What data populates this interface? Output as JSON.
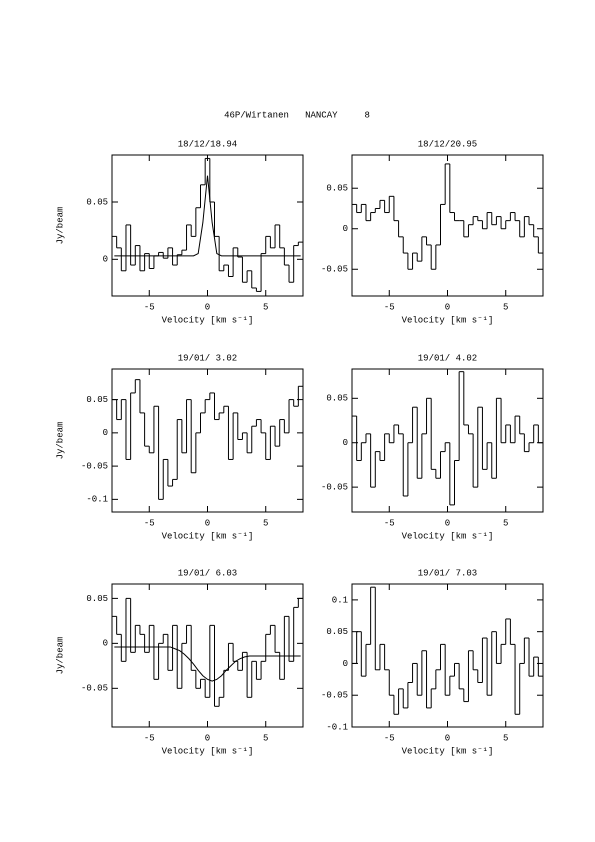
{
  "title": "46P/Wirtanen   NANCAY     8",
  "chart_data": [
    {
      "type": "line",
      "title": "18/12/18.94",
      "xlabel": "Velocity [km s⁻¹]",
      "ylabel": "Jy/beam",
      "x": [
        -8,
        -7.6,
        -7.2,
        -6.8,
        -6.4,
        -6,
        -5.6,
        -5.2,
        -4.8,
        -4.4,
        -4,
        -3.6,
        -3.2,
        -2.8,
        -2.4,
        -2,
        -1.6,
        -1.2,
        -0.8,
        -0.4,
        0,
        0.4,
        0.8,
        1.2,
        1.6,
        2,
        2.4,
        2.8,
        3.2,
        3.6,
        4,
        4.4,
        4.8,
        5.2,
        5.6,
        6,
        6.4,
        6.8,
        7.2,
        7.6,
        8
      ],
      "series": [
        {
          "color": "#000000",
          "step": true,
          "values": [
            0.02,
            0.01,
            -0.01,
            0.03,
            -0.005,
            0.012,
            -0.01,
            0.005,
            -0.008,
            0.003,
            0.006,
            0.001,
            0.01,
            -0.005,
            0.004,
            0.008,
            0.03,
            0.02,
            0.045,
            0.065,
            0.088,
            0.05,
            0.02,
            -0.01,
            -0.005,
            -0.015,
            0.01,
            0.002,
            -0.02,
            -0.01,
            -0.025,
            -0.028,
            0.005,
            0.02,
            0.01,
            0.03,
            0.01,
            -0.005,
            -0.02,
            0.012,
            0.015
          ]
        },
        {
          "color": "#000000",
          "step": false,
          "values": [
            0.003,
            0.003,
            0.003,
            0.003,
            0.003,
            0.003,
            0.003,
            0.003,
            0.003,
            0.003,
            0.003,
            0.003,
            0.003,
            0.003,
            0.003,
            0.003,
            0.003,
            0.003,
            0.005,
            0.032,
            0.073,
            0.032,
            0.005,
            0.003,
            0.003,
            0.003,
            0.003,
            0.003,
            0.003,
            0.003,
            0.003,
            0.003,
            0.003,
            0.003,
            0.003,
            0.003,
            0.003,
            0.003,
            0.003,
            0.003,
            0.003
          ]
        }
      ],
      "xlim": [
        -8.2,
        8.2
      ],
      "xticks": [
        -5,
        0,
        5
      ],
      "ylim": [
        -0.032,
        0.091
      ],
      "yticks": [
        0,
        0.05
      ]
    },
    {
      "type": "line",
      "title": "18/12/20.95",
      "xlabel": "Velocity [km s⁻¹]",
      "x": [
        -8,
        -7.6,
        -7.2,
        -6.8,
        -6.4,
        -6,
        -5.6,
        -5.2,
        -4.8,
        -4.4,
        -4,
        -3.6,
        -3.2,
        -2.8,
        -2.4,
        -2,
        -1.6,
        -1.2,
        -0.8,
        -0.4,
        0,
        0.4,
        0.8,
        1.2,
        1.6,
        2,
        2.4,
        2.8,
        3.2,
        3.6,
        4,
        4.4,
        4.8,
        5.2,
        5.6,
        6,
        6.4,
        6.8,
        7.2,
        7.6,
        8
      ],
      "series": [
        {
          "color": "#000000",
          "step": true,
          "values": [
            0.03,
            0.02,
            0.03,
            0.01,
            0.02,
            0.025,
            0.035,
            0.02,
            0.04,
            0.01,
            -0.01,
            -0.03,
            -0.05,
            -0.03,
            -0.04,
            -0.01,
            -0.02,
            -0.05,
            -0.02,
            0.03,
            0.08,
            0.02,
            0.01,
            0.01,
            -0.01,
            0.005,
            0.015,
            0.01,
            0.0,
            0.02,
            0.005,
            0.015,
            0.0,
            0.01,
            0.02,
            0.01,
            -0.01,
            0.015,
            0.005,
            -0.01,
            -0.03
          ]
        }
      ],
      "xlim": [
        -8.2,
        8.2
      ],
      "xticks": [
        -5,
        0,
        5
      ],
      "ylim": [
        -0.083,
        0.091
      ],
      "yticks": [
        -0.05,
        0,
        0.05
      ]
    },
    {
      "type": "line",
      "title": "19/01/ 3.02",
      "xlabel": "Velocity [km s⁻¹]",
      "ylabel": "Jy/beam",
      "x": [
        -8,
        -7.6,
        -7.2,
        -6.8,
        -6.4,
        -6,
        -5.6,
        -5.2,
        -4.8,
        -4.4,
        -4,
        -3.6,
        -3.2,
        -2.8,
        -2.4,
        -2,
        -1.6,
        -1.2,
        -0.8,
        -0.4,
        0,
        0.4,
        0.8,
        1.2,
        1.6,
        2,
        2.4,
        2.8,
        3.2,
        3.6,
        4,
        4.4,
        4.8,
        5.2,
        5.6,
        6,
        6.4,
        6.8,
        7.2,
        7.6,
        8
      ],
      "series": [
        {
          "color": "#000000",
          "step": true,
          "values": [
            0.05,
            0.02,
            0.05,
            -0.04,
            0.06,
            0.08,
            0.03,
            -0.02,
            -0.03,
            0.04,
            -0.1,
            -0.04,
            -0.08,
            -0.07,
            0.02,
            -0.03,
            0.05,
            -0.06,
            0.0,
            0.03,
            0.05,
            0.06,
            0.02,
            0.03,
            0.04,
            -0.04,
            0.03,
            -0.01,
            0.0,
            -0.03,
            0.01,
            0.02,
            0.0,
            -0.04,
            0.01,
            -0.02,
            0.02,
            0.0,
            0.05,
            0.04,
            0.07
          ]
        }
      ],
      "xlim": [
        -8.2,
        8.2
      ],
      "xticks": [
        -5,
        0,
        5
      ],
      "ylim": [
        -0.119,
        0.096
      ],
      "yticks": [
        -0.1,
        -0.05,
        0,
        0.05
      ]
    },
    {
      "type": "line",
      "title": "19/01/ 4.02",
      "xlabel": "Velocity [km s⁻¹]",
      "x": [
        -8,
        -7.6,
        -7.2,
        -6.8,
        -6.4,
        -6,
        -5.6,
        -5.2,
        -4.8,
        -4.4,
        -4,
        -3.6,
        -3.2,
        -2.8,
        -2.4,
        -2,
        -1.6,
        -1.2,
        -0.8,
        -0.4,
        0,
        0.4,
        0.8,
        1.2,
        1.6,
        2,
        2.4,
        2.8,
        3.2,
        3.6,
        4,
        4.4,
        4.8,
        5.2,
        5.6,
        6,
        6.4,
        6.8,
        7.2,
        7.6,
        8
      ],
      "series": [
        {
          "color": "#000000",
          "step": true,
          "values": [
            0.03,
            -0.02,
            0.0,
            0.01,
            -0.05,
            -0.01,
            -0.02,
            0.01,
            0.0,
            0.02,
            0.01,
            -0.06,
            0.0,
            0.04,
            -0.04,
            0.01,
            0.05,
            -0.03,
            -0.04,
            -0.01,
            0.0,
            -0.07,
            -0.02,
            0.08,
            0.02,
            0.01,
            -0.05,
            0.04,
            -0.03,
            0.0,
            -0.04,
            0.05,
            0.0,
            0.02,
            0.0,
            0.03,
            0.01,
            -0.01,
            0.0,
            0.02,
            0.0
          ]
        }
      ],
      "xlim": [
        -8.2,
        8.2
      ],
      "xticks": [
        -5,
        0,
        5
      ],
      "ylim": [
        -0.078,
        0.083
      ],
      "yticks": [
        -0.05,
        0,
        0.05
      ]
    },
    {
      "type": "line",
      "title": "19/01/ 6.03",
      "xlabel": "Velocity [km s⁻¹]",
      "ylabel": "Jy/beam",
      "x": [
        -8,
        -7.6,
        -7.2,
        -6.8,
        -6.4,
        -6,
        -5.6,
        -5.2,
        -4.8,
        -4.4,
        -4,
        -3.6,
        -3.2,
        -2.8,
        -2.4,
        -2,
        -1.6,
        -1.2,
        -0.8,
        -0.4,
        0,
        0.4,
        0.8,
        1.2,
        1.6,
        2,
        2.4,
        2.8,
        3.2,
        3.6,
        4,
        4.4,
        4.8,
        5.2,
        5.6,
        6,
        6.4,
        6.8,
        7.2,
        7.6,
        8
      ],
      "series": [
        {
          "color": "#000000",
          "step": true,
          "values": [
            0.03,
            0.01,
            -0.02,
            0.05,
            -0.01,
            0.02,
            0.01,
            -0.01,
            0.02,
            -0.04,
            0.0,
            0.01,
            -0.03,
            0.02,
            -0.05,
            0.0,
            0.02,
            -0.03,
            -0.05,
            -0.04,
            -0.06,
            0.02,
            -0.07,
            -0.06,
            -0.03,
            0.0,
            -0.02,
            -0.03,
            -0.01,
            -0.06,
            -0.02,
            -0.04,
            -0.02,
            0.01,
            0.02,
            -0.01,
            -0.04,
            0.03,
            -0.02,
            0.04,
            0.05
          ]
        },
        {
          "color": "#000000",
          "step": false,
          "values": [
            -0.004,
            -0.004,
            -0.004,
            -0.004,
            -0.004,
            -0.004,
            -0.004,
            -0.004,
            -0.004,
            -0.004,
            -0.004,
            -0.004,
            -0.004,
            -0.006,
            -0.008,
            -0.012,
            -0.017,
            -0.023,
            -0.03,
            -0.036,
            -0.04,
            -0.042,
            -0.04,
            -0.036,
            -0.03,
            -0.025,
            -0.02,
            -0.017,
            -0.015,
            -0.014,
            -0.014,
            -0.014,
            -0.014,
            -0.014,
            -0.014,
            -0.014,
            -0.014,
            -0.014,
            -0.014,
            -0.014,
            -0.014
          ]
        }
      ],
      "xlim": [
        -8.2,
        8.2
      ],
      "xticks": [
        -5,
        0,
        5
      ],
      "ylim": [
        -0.093,
        0.066
      ],
      "yticks": [
        -0.05,
        0,
        0.05
      ]
    },
    {
      "type": "line",
      "title": "19/01/ 7.03",
      "xlabel": "Velocity [km s⁻¹]",
      "x": [
        -8,
        -7.6,
        -7.2,
        -6.8,
        -6.4,
        -6,
        -5.6,
        -5.2,
        -4.8,
        -4.4,
        -4,
        -3.6,
        -3.2,
        -2.8,
        -2.4,
        -2,
        -1.6,
        -1.2,
        -0.8,
        -0.4,
        0,
        0.4,
        0.8,
        1.2,
        1.6,
        2,
        2.4,
        2.8,
        3.2,
        3.6,
        4,
        4.4,
        4.8,
        5.2,
        5.6,
        6,
        6.4,
        6.8,
        7.2,
        7.6,
        8
      ],
      "series": [
        {
          "color": "#000000",
          "step": true,
          "values": [
            0.0,
            0.05,
            -0.02,
            0.03,
            0.12,
            -0.01,
            0.03,
            -0.01,
            -0.05,
            -0.08,
            -0.04,
            -0.07,
            -0.03,
            0.0,
            -0.05,
            0.02,
            -0.07,
            -0.04,
            -0.01,
            0.03,
            -0.05,
            -0.02,
            0.0,
            -0.04,
            -0.06,
            0.02,
            -0.01,
            -0.03,
            0.04,
            -0.05,
            0.05,
            0.0,
            0.03,
            0.07,
            0.03,
            -0.08,
            0.0,
            0.04,
            -0.02,
            0.01,
            -0.02
          ]
        }
      ],
      "xlim": [
        -8.2,
        8.2
      ],
      "xticks": [
        -5,
        0,
        5
      ],
      "ylim": [
        -0.1,
        0.125
      ],
      "yticks": [
        -0.1,
        -0.05,
        0,
        0.05,
        0.1
      ]
    }
  ]
}
